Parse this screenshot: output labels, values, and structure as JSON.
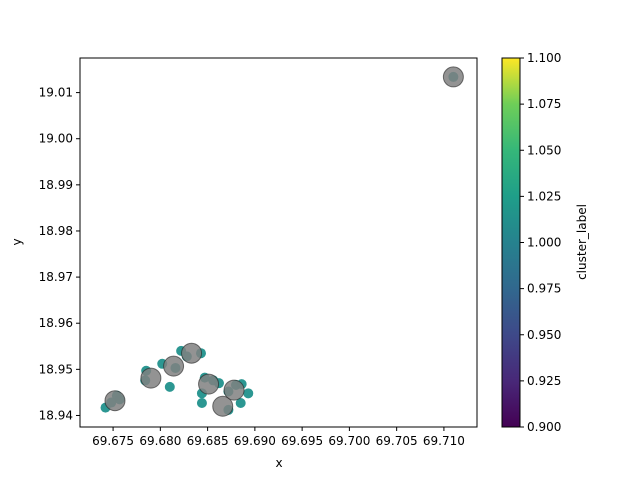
{
  "chart_data": {
    "type": "scatter",
    "title": "",
    "xlabel": "x",
    "ylabel": "y",
    "xlim": [
      69.6715,
      69.7135
    ],
    "ylim": [
      18.9375,
      19.0175
    ],
    "xticks": [
      69.675,
      69.68,
      69.685,
      69.69,
      69.695,
      69.7,
      69.705,
      69.71
    ],
    "xtick_labels": [
      "69.675",
      "69.680",
      "69.685",
      "69.690",
      "69.695",
      "69.700",
      "69.705",
      "69.710"
    ],
    "yticks": [
      18.94,
      18.95,
      18.96,
      18.97,
      18.98,
      18.99,
      19.0,
      19.01
    ],
    "ytick_labels": [
      "18.94",
      "18.95",
      "18.96",
      "18.97",
      "18.98",
      "18.99",
      "19.00",
      "19.01"
    ],
    "grid": false,
    "colorbar": {
      "label": "cluster_label",
      "range": [
        0.9,
        1.1
      ],
      "ticks": [
        0.9,
        0.925,
        0.95,
        0.975,
        1.0,
        1.025,
        1.05,
        1.075,
        1.1
      ],
      "tick_labels": [
        "0.900",
        "0.925",
        "0.950",
        "0.975",
        "1.000",
        "1.025",
        "1.050",
        "1.075",
        "1.100"
      ],
      "colormap": "viridis"
    },
    "series": [
      {
        "marker": "small-circle",
        "color_value": 1.0,
        "color": "#21918c",
        "opacity": 0.95,
        "points": [
          [
            69.6742,
            18.9417
          ],
          [
            69.6754,
            18.9443
          ],
          [
            69.6757,
            18.9435
          ],
          [
            69.6748,
            18.9428
          ],
          [
            69.6785,
            18.9497
          ],
          [
            69.6784,
            18.9476
          ],
          [
            69.6802,
            18.9512
          ],
          [
            69.681,
            18.9462
          ],
          [
            69.6816,
            18.9503
          ],
          [
            69.6822,
            18.954
          ],
          [
            69.6828,
            18.9528
          ],
          [
            69.6843,
            18.9535
          ],
          [
            69.6844,
            18.9448
          ],
          [
            69.6844,
            18.9427
          ],
          [
            69.6847,
            18.9482
          ],
          [
            69.6856,
            18.9476
          ],
          [
            69.6862,
            18.947
          ],
          [
            69.6872,
            18.9452
          ],
          [
            69.6872,
            18.9412
          ],
          [
            69.688,
            18.9466
          ],
          [
            69.6885,
            18.9427
          ],
          [
            69.6886,
            18.9468
          ],
          [
            69.6893,
            18.9448
          ],
          [
            69.711,
            19.0134
          ]
        ]
      },
      {
        "marker": "large-circle",
        "color": "#808080",
        "opacity": 0.85,
        "points": [
          [
            69.6752,
            18.9432
          ],
          [
            69.679,
            18.9481
          ],
          [
            69.6814,
            18.9507
          ],
          [
            69.6833,
            18.9535
          ],
          [
            69.6851,
            18.9468
          ],
          [
            69.6866,
            18.942
          ],
          [
            69.6878,
            18.9455
          ],
          [
            69.711,
            19.0134
          ]
        ]
      }
    ]
  }
}
